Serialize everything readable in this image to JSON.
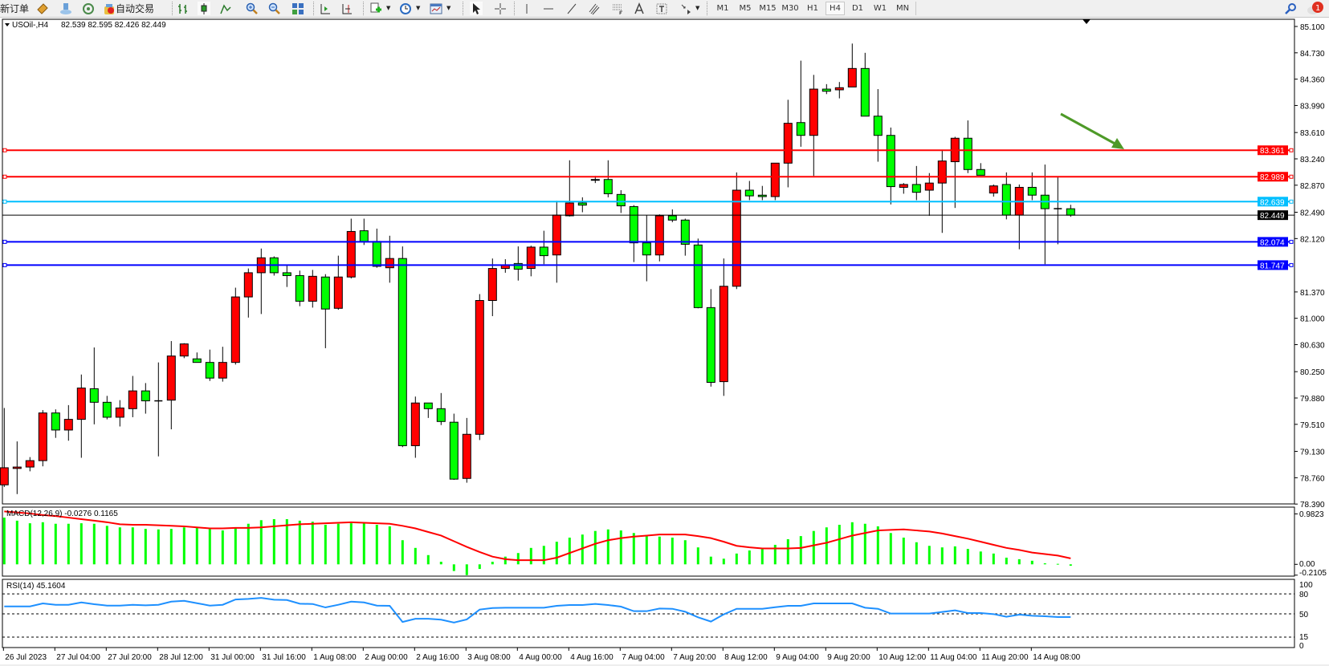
{
  "toolbar": {
    "new_order_label": "新订单",
    "autotrade_label": "自动交易",
    "icons": [
      "book-icon",
      "community-icon",
      "signal-icon",
      "autotrade-icon",
      "bar-chart-icon",
      "candlestick-icon",
      "line-chart-icon",
      "zoom-in-icon",
      "zoom-out-icon",
      "tile-windows-icon",
      "auto-scroll-icon",
      "chart-shift-icon",
      "indicators-icon",
      "periods-icon",
      "templates-icon",
      "cursor-icon",
      "crosshair-icon",
      "vertical-line-icon",
      "horizontal-line-icon",
      "trendline-icon",
      "fibo-channel-icon",
      "fibo-icon",
      "text-icon",
      "text-label-icon",
      "arrows-icon",
      "search-icon",
      "notification-icon"
    ],
    "timeframes": [
      "M1",
      "M5",
      "M15",
      "M30",
      "H1",
      "H4",
      "D1",
      "W1",
      "MN"
    ],
    "active_timeframe": "H4",
    "notification_count": "1"
  },
  "header": {
    "symbol": "USOil-,H4",
    "ohlc": "82.539 82.595 82.426 82.449"
  },
  "colors": {
    "bull_body": "#ff0000",
    "bear_body": "#00ff00",
    "resistance": "#ff0000",
    "pivot": "#00bfff",
    "support": "#0000ff",
    "bid_line": "#000000",
    "macd_hist": "#00ff00",
    "macd_signal": "#ff0000",
    "rsi_line": "#1e90ff",
    "arrow": "#4e9a28"
  },
  "price_axis": {
    "ticks": [
      "85.100",
      "84.730",
      "84.360",
      "83.990",
      "83.610",
      "83.240",
      "82.870",
      "82.490",
      "82.120",
      "81.370",
      "81.000",
      "80.630",
      "80.250",
      "79.880",
      "79.510",
      "79.130",
      "78.760",
      "78.390"
    ],
    "range": [
      78.39,
      85.1
    ]
  },
  "hlines": [
    {
      "price": 83.361,
      "label": "83.361",
      "color": "#ff0000"
    },
    {
      "price": 82.989,
      "label": "82.989",
      "color": "#ff0000"
    },
    {
      "price": 82.639,
      "label": "82.639",
      "color": "#00bfff"
    },
    {
      "price": 82.074,
      "label": "82.074",
      "color": "#0000ff"
    },
    {
      "price": 81.747,
      "label": "81.747",
      "color": "#0000ff"
    }
  ],
  "bid": {
    "price": 82.449,
    "label": "82.449"
  },
  "macd": {
    "title": "MACD(12,26,9) -0.0276 0.1165",
    "axis_labels": [
      "0.9823",
      "0.00",
      "-0.2105"
    ],
    "histogram": [
      0.91,
      0.85,
      0.8,
      0.82,
      0.79,
      0.79,
      0.8,
      0.79,
      0.75,
      0.72,
      0.72,
      0.69,
      0.68,
      0.69,
      0.72,
      0.71,
      0.71,
      0.66,
      0.72,
      0.79,
      0.86,
      0.88,
      0.88,
      0.85,
      0.83,
      0.77,
      0.79,
      0.8,
      0.82,
      0.77,
      0.74,
      0.47,
      0.32,
      0.18,
      0.05,
      -0.13,
      -0.21,
      -0.09,
      0.05,
      0.15,
      0.22,
      0.32,
      0.36,
      0.44,
      0.52,
      0.58,
      0.65,
      0.68,
      0.66,
      0.61,
      0.57,
      0.54,
      0.52,
      0.47,
      0.33,
      0.15,
      0.11,
      0.21,
      0.27,
      0.3,
      0.38,
      0.49,
      0.55,
      0.65,
      0.72,
      0.77,
      0.82,
      0.79,
      0.74,
      0.61,
      0.52,
      0.43,
      0.36,
      0.33,
      0.35,
      0.3,
      0.25,
      0.21,
      0.13,
      0.1,
      0.07,
      0.02,
      0.01,
      -0.0276
    ],
    "signal": [
      1.03,
      1.01,
      0.99,
      0.96,
      0.94,
      0.91,
      0.88,
      0.85,
      0.82,
      0.78,
      0.77,
      0.77,
      0.76,
      0.75,
      0.74,
      0.72,
      0.7,
      0.7,
      0.71,
      0.71,
      0.72,
      0.74,
      0.76,
      0.78,
      0.79,
      0.8,
      0.81,
      0.82,
      0.81,
      0.8,
      0.79,
      0.75,
      0.7,
      0.63,
      0.56,
      0.45,
      0.34,
      0.24,
      0.15,
      0.1,
      0.08,
      0.08,
      0.08,
      0.13,
      0.22,
      0.31,
      0.4,
      0.47,
      0.51,
      0.54,
      0.56,
      0.58,
      0.58,
      0.58,
      0.55,
      0.51,
      0.44,
      0.36,
      0.33,
      0.31,
      0.31,
      0.31,
      0.32,
      0.37,
      0.42,
      0.49,
      0.56,
      0.61,
      0.66,
      0.67,
      0.68,
      0.66,
      0.64,
      0.6,
      0.55,
      0.5,
      0.44,
      0.38,
      0.32,
      0.28,
      0.23,
      0.2,
      0.17,
      0.1165
    ]
  },
  "rsi": {
    "title": "RSI(14) 45.1604",
    "axis_labels": [
      "100",
      "80",
      "50",
      "15",
      "0"
    ],
    "levels": [
      80,
      50,
      15
    ],
    "values": [
      61.2,
      61.2,
      61.2,
      65.6,
      63.6,
      63.6,
      67.2,
      64.4,
      62.4,
      62.4,
      63.6,
      62.8,
      63.6,
      68.4,
      69.6,
      66.0,
      62.4,
      63.6,
      71.6,
      72.4,
      74.0,
      71.2,
      70.8,
      65.2,
      64.8,
      59.6,
      63.6,
      68.4,
      67.2,
      62.4,
      62.0,
      37.8,
      42.6,
      42.6,
      41.2,
      37.0,
      41.6,
      56.4,
      58.8,
      59.2,
      59.2,
      59.2,
      59.2,
      62.0,
      63.3,
      63.3,
      64.9,
      63.3,
      60.8,
      54.0,
      54.0,
      58.0,
      57.6,
      53.2,
      44.8,
      38.4,
      49.2,
      57.6,
      57.6,
      57.6,
      60.0,
      62.0,
      62.0,
      65.6,
      65.6,
      65.6,
      65.6,
      59.2,
      57.6,
      50.4,
      50.4,
      50.4,
      50.4,
      52.8,
      55.2,
      51.2,
      51.2,
      49.6,
      45.6,
      48.8,
      47.2,
      46.4,
      45.2,
      45.16
    ]
  },
  "time_axis": [
    "26 Jul 2023",
    "27 Jul 04:00",
    "27 Jul 20:00",
    "28 Jul 12:00",
    "31 Jul 00:00",
    "31 Jul 16:00",
    "1 Aug 08:00",
    "2 Aug 00:00",
    "2 Aug 16:00",
    "3 Aug 08:00",
    "4 Aug 00:00",
    "4 Aug 16:00",
    "7 Aug 04:00",
    "7 Aug 20:00",
    "8 Aug 12:00",
    "9 Aug 04:00",
    "9 Aug 20:00",
    "10 Aug 12:00",
    "11 Aug 04:00",
    "11 Aug 20:00",
    "14 Aug 08:00"
  ],
  "chart_data": {
    "type": "candlestick",
    "symbol": "USOil-",
    "timeframe": "H4",
    "ylim": [
      78.39,
      85.1
    ],
    "ohlc": [
      [
        78.66,
        79.74,
        78.63,
        78.9
      ],
      [
        78.89,
        79.27,
        78.53,
        78.91
      ],
      [
        78.91,
        79.05,
        78.85,
        79.0
      ],
      [
        79.0,
        79.71,
        78.92,
        79.67
      ],
      [
        79.67,
        79.72,
        79.32,
        79.43
      ],
      [
        79.43,
        79.78,
        79.28,
        79.58
      ],
      [
        79.58,
        80.21,
        79.04,
        80.02
      ],
      [
        80.01,
        80.59,
        79.51,
        79.82
      ],
      [
        79.82,
        79.91,
        79.58,
        79.61
      ],
      [
        79.61,
        79.85,
        79.48,
        79.74
      ],
      [
        79.73,
        80.19,
        79.61,
        79.98
      ],
      [
        79.98,
        80.09,
        79.66,
        79.84
      ],
      [
        79.84,
        80.38,
        79.06,
        79.84
      ],
      [
        79.85,
        80.68,
        79.44,
        80.47
      ],
      [
        80.47,
        80.65,
        80.44,
        80.64
      ],
      [
        80.43,
        80.52,
        80.38,
        80.38
      ],
      [
        80.38,
        80.56,
        80.12,
        80.16
      ],
      [
        80.16,
        80.6,
        80.11,
        80.38
      ],
      [
        80.38,
        81.43,
        80.35,
        81.3
      ],
      [
        81.3,
        81.7,
        81.01,
        81.64
      ],
      [
        81.64,
        81.98,
        81.06,
        81.85
      ],
      [
        81.85,
        81.87,
        81.6,
        81.64
      ],
      [
        81.64,
        81.75,
        81.44,
        81.6
      ],
      [
        81.6,
        81.67,
        81.17,
        81.24
      ],
      [
        81.24,
        81.68,
        81.15,
        81.59
      ],
      [
        81.58,
        81.62,
        80.58,
        81.13
      ],
      [
        81.14,
        81.88,
        81.12,
        81.58
      ],
      [
        81.58,
        82.4,
        81.56,
        82.22
      ],
      [
        82.23,
        82.4,
        82.03,
        82.08
      ],
      [
        82.08,
        82.26,
        81.71,
        81.73
      ],
      [
        81.71,
        82.16,
        81.5,
        81.84
      ],
      [
        81.84,
        82.01,
        79.19,
        79.21
      ],
      [
        79.21,
        79.9,
        79.04,
        79.81
      ],
      [
        79.81,
        79.81,
        79.6,
        79.73
      ],
      [
        79.73,
        79.95,
        79.5,
        79.55
      ],
      [
        79.54,
        79.66,
        78.73,
        78.74
      ],
      [
        78.75,
        79.6,
        78.69,
        79.37
      ],
      [
        79.37,
        81.34,
        79.29,
        81.25
      ],
      [
        81.25,
        81.84,
        81.03,
        81.7
      ],
      [
        81.7,
        81.83,
        81.64,
        81.75
      ],
      [
        81.77,
        82.01,
        81.53,
        81.69
      ],
      [
        81.7,
        82.02,
        81.59,
        82.0
      ],
      [
        82.0,
        82.23,
        81.76,
        81.88
      ],
      [
        81.89,
        82.65,
        81.5,
        82.45
      ],
      [
        82.44,
        83.22,
        82.43,
        82.62
      ],
      [
        82.62,
        82.7,
        82.49,
        82.59
      ],
      [
        82.94,
        83.0,
        82.9,
        82.95
      ],
      [
        82.95,
        83.22,
        82.7,
        82.75
      ],
      [
        82.74,
        82.8,
        82.48,
        82.58
      ],
      [
        82.57,
        82.59,
        81.79,
        82.06
      ],
      [
        82.06,
        82.45,
        81.52,
        81.89
      ],
      [
        81.89,
        82.46,
        81.8,
        82.44
      ],
      [
        82.44,
        82.53,
        82.35,
        82.38
      ],
      [
        82.38,
        82.4,
        81.88,
        82.04
      ],
      [
        82.03,
        82.12,
        81.14,
        81.15
      ],
      [
        81.15,
        81.41,
        80.04,
        80.1
      ],
      [
        80.11,
        81.84,
        79.91,
        81.45
      ],
      [
        81.45,
        83.05,
        81.41,
        82.8
      ],
      [
        82.8,
        82.93,
        82.66,
        82.72
      ],
      [
        82.73,
        82.86,
        82.66,
        82.71
      ],
      [
        82.71,
        83.18,
        82.66,
        83.18
      ],
      [
        83.18,
        84.07,
        82.84,
        83.74
      ],
      [
        83.75,
        84.62,
        83.41,
        83.57
      ],
      [
        83.57,
        84.42,
        83.0,
        84.22
      ],
      [
        84.22,
        84.29,
        84.15,
        84.19
      ],
      [
        84.21,
        84.32,
        84.09,
        84.24
      ],
      [
        84.25,
        84.86,
        84.25,
        84.51
      ],
      [
        84.51,
        84.73,
        83.84,
        83.84
      ],
      [
        83.84,
        84.22,
        83.2,
        83.57
      ],
      [
        83.57,
        83.68,
        82.6,
        82.85
      ],
      [
        82.84,
        82.9,
        82.75,
        82.88
      ],
      [
        82.88,
        83.14,
        82.66,
        82.77
      ],
      [
        82.8,
        83.04,
        82.44,
        82.9
      ],
      [
        82.9,
        83.37,
        82.2,
        83.21
      ],
      [
        83.2,
        83.55,
        82.55,
        83.53
      ],
      [
        83.53,
        83.78,
        83.04,
        83.09
      ],
      [
        83.09,
        83.18,
        83.01,
        83.01
      ],
      [
        82.76,
        82.88,
        82.71,
        82.86
      ],
      [
        82.88,
        83.05,
        82.39,
        82.45
      ],
      [
        82.45,
        82.88,
        81.97,
        82.84
      ],
      [
        82.84,
        83.05,
        82.66,
        82.73
      ],
      [
        82.73,
        83.16,
        81.76,
        82.54
      ],
      [
        82.54,
        82.98,
        82.04,
        82.54
      ],
      [
        82.539,
        82.595,
        82.426,
        82.449
      ]
    ]
  }
}
